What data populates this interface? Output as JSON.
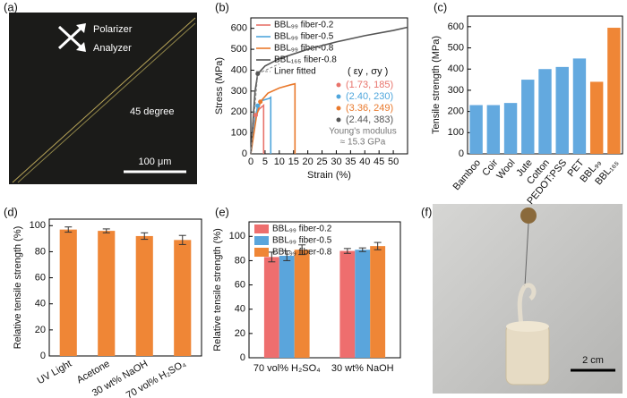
{
  "chart_data": [
    {
      "type": "line",
      "panel_label": "(b)",
      "x_label": "Strain (%)",
      "y_label": "Stress (MPa)",
      "xlim": [
        0,
        55
      ],
      "xticks": [
        0,
        5,
        10,
        15,
        20,
        25,
        30,
        35,
        40,
        45,
        50
      ],
      "ylim": [
        0,
        650
      ],
      "yticks": [
        0,
        100,
        200,
        300,
        400,
        500,
        600
      ],
      "series": [
        {
          "name": "BBL₉₉ fiber-0.2",
          "color": "#e8736b",
          "x": [
            0,
            1,
            1.73,
            3,
            4.5,
            4.5
          ],
          "values": [
            0,
            120,
            185,
            215,
            232,
            0
          ]
        },
        {
          "name": "BBL₉₉ fiber-0.5",
          "color": "#4fa6dc",
          "x": [
            0,
            1.5,
            2.4,
            4,
            6.5,
            7,
            7
          ],
          "values": [
            0,
            160,
            230,
            255,
            265,
            270,
            0
          ]
        },
        {
          "name": "BBL₉₉ fiber-0.8",
          "color": "#e9792c",
          "x": [
            0,
            2,
            3.36,
            6,
            10,
            14,
            15.5,
            15.5
          ],
          "values": [
            0,
            180,
            249,
            290,
            315,
            330,
            335,
            0
          ]
        },
        {
          "name": "BBL₁₆₅ fiber-0.8",
          "color": "#555555",
          "x": [
            0,
            1.5,
            2.44,
            5,
            10,
            20,
            30,
            40,
            50,
            55
          ],
          "values": [
            0,
            300,
            383,
            420,
            455,
            500,
            535,
            565,
            590,
            605
          ]
        }
      ],
      "fit": {
        "name": "Liner fitted",
        "color": "#888888",
        "x": [
          0,
          2.44,
          10
        ],
        "values": [
          0,
          383,
          430
        ]
      },
      "yield_points": {
        "header": "( εy , σy )",
        "x": [
          1.73,
          2.4,
          3.36,
          2.44
        ],
        "values": [
          185,
          230,
          249,
          383
        ],
        "value_labels": [
          "(1.73, 185)",
          "(2.40, 230)",
          "(3.36, 249)",
          "(2.44, 383)"
        ],
        "colors": [
          "#e8736b",
          "#4fa6dc",
          "#e9792c",
          "#555555"
        ]
      },
      "annotation": [
        "Young's modulus",
        "≈ 15.3 GPa"
      ]
    },
    {
      "type": "bar",
      "panel_label": "(c)",
      "y_label": "Tensile strength (MPa)",
      "categories": [
        "Bamboo",
        "Coir",
        "Wool",
        "Jute",
        "Cotton",
        "PEDOT:PSS",
        "PET",
        "BBL₉₉",
        "BBL₁₆₅"
      ],
      "values": [
        230,
        230,
        240,
        350,
        400,
        410,
        450,
        340,
        595
      ],
      "colors": [
        "#63a9df",
        "#63a9df",
        "#63a9df",
        "#63a9df",
        "#63a9df",
        "#63a9df",
        "#63a9df",
        "#ef8636",
        "#ef8636"
      ],
      "ylim": [
        0,
        650
      ],
      "yticks": [
        0,
        100,
        200,
        300,
        400,
        500,
        600
      ]
    },
    {
      "type": "bar",
      "panel_label": "(d)",
      "y_label": "Relative tensile strength (%)",
      "categories": [
        "UV Light",
        "Acetone",
        "30 wt% NaOH",
        "70 vol% H₂SO₄"
      ],
      "values": [
        97,
        96,
        92,
        89
      ],
      "errors": [
        2,
        1.5,
        2.5,
        3.5
      ],
      "color": "#ef8636",
      "ylim": [
        0,
        105
      ],
      "yticks": [
        0,
        20,
        40,
        60,
        80,
        100
      ]
    },
    {
      "type": "grouped_bar",
      "panel_label": "(e)",
      "y_label": "Relative tensile strength (%)",
      "categories": [
        "70 vol% H₂SO₄",
        "30 wt% NaOH"
      ],
      "series": [
        {
          "name": "BBL₉₉ fiber-0.2",
          "color": "#ee6e6e",
          "values": [
            83,
            88
          ],
          "errors": [
            4,
            2
          ]
        },
        {
          "name": "BBL₉₉ fiber-0.5",
          "color": "#5aa5dc",
          "values": [
            84,
            89
          ],
          "errors": [
            4,
            1.5
          ]
        },
        {
          "name": "BBL₉₉ fiber-0.8",
          "color": "#ef8636",
          "values": [
            89,
            92
          ],
          "errors": [
            4,
            3
          ]
        }
      ],
      "ylim": [
        0,
        112
      ],
      "yticks": [
        0,
        20,
        40,
        60,
        80,
        100
      ]
    }
  ],
  "images": {
    "a": {
      "panel_label": "(a)",
      "texts": [
        "Polarizer",
        "Analyzer",
        "45 degree"
      ],
      "scale_bar": "100 μm"
    },
    "f": {
      "panel_label": "(f)",
      "scale_bar": "2 cm"
    }
  }
}
